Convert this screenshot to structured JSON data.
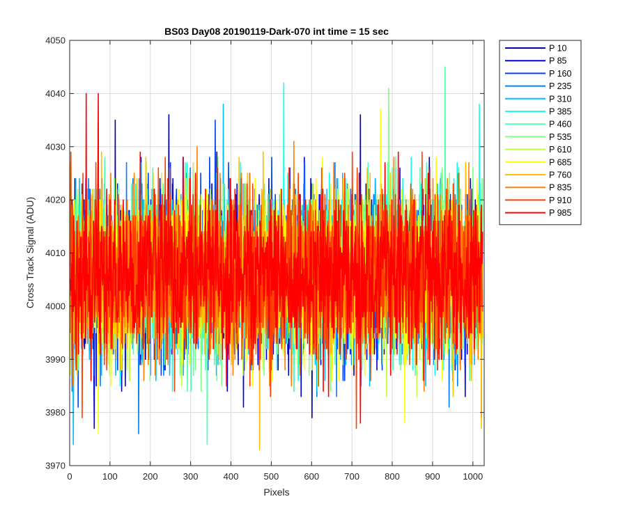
{
  "chart_data": {
    "type": "line",
    "title": "BS03 Day08 20190119-Dark-070 int time = 15 sec",
    "xlabel": "Pixels",
    "ylabel": "Cross Track Signal (ADU)",
    "xlim": [
      0,
      1028
    ],
    "ylim": [
      3970,
      4050
    ],
    "x_ticks": [
      0,
      100,
      200,
      300,
      400,
      500,
      600,
      700,
      800,
      900,
      1000
    ],
    "y_ticks": [
      3970,
      3980,
      3990,
      4000,
      4010,
      4020,
      4030,
      4040,
      4050
    ],
    "grid": true,
    "legend_position": "outside-right",
    "n_points": 1024,
    "series": [
      {
        "name": "P 10",
        "color": "#0000a8",
        "seed": 10,
        "peaks": [
          [
            112,
            4035
          ],
          [
            245,
            4036
          ],
          [
            600,
            3979
          ],
          [
            720,
            4036
          ]
        ]
      },
      {
        "name": "P 85",
        "color": "#0000e6",
        "seed": 85,
        "peaks": [
          [
            60,
            3977
          ],
          [
            430,
            3981
          ],
          [
            1020,
            3979
          ]
        ]
      },
      {
        "name": "P 160",
        "color": "#0041ff",
        "seed": 160,
        "peaks": [
          [
            20,
            3981
          ],
          [
            360,
            4035
          ]
        ]
      },
      {
        "name": "P 235",
        "color": "#0080ff",
        "seed": 235,
        "peaks": [
          [
            170,
            3976
          ],
          [
            940,
            3981
          ]
        ]
      },
      {
        "name": "P 310",
        "color": "#00bfff",
        "seed": 310,
        "peaks": [
          [
            380,
            4038
          ],
          [
            8,
            3974
          ]
        ]
      },
      {
        "name": "P 385",
        "color": "#10ffef",
        "seed": 385,
        "peaks": [
          [
            530,
            4042
          ],
          [
            1015,
            4038
          ]
        ]
      },
      {
        "name": "P 460",
        "color": "#50ffaf",
        "seed": 460,
        "peaks": [
          [
            930,
            4045
          ],
          [
            340,
            3974
          ]
        ]
      },
      {
        "name": "P 535",
        "color": "#80ff80",
        "seed": 535,
        "peaks": [
          [
            790,
            4041
          ]
        ]
      },
      {
        "name": "P 610",
        "color": "#c0ff40",
        "seed": 610,
        "peaks": [
          [
            860,
            3983
          ]
        ]
      },
      {
        "name": "P 685",
        "color": "#ffff00",
        "seed": 685,
        "peaks": [
          [
            770,
            4037
          ],
          [
            70,
            3976
          ],
          [
            830,
            3978
          ]
        ]
      },
      {
        "name": "P 760",
        "color": "#ffc000",
        "seed": 760,
        "peaks": [
          [
            470,
            3973
          ],
          [
            1020,
            3977
          ]
        ]
      },
      {
        "name": "P 835",
        "color": "#ff8000",
        "seed": 835,
        "peaks": [
          [
            315,
            4030
          ],
          [
            555,
            4031
          ]
        ]
      },
      {
        "name": "P 910",
        "color": "#ff4000",
        "seed": 910,
        "peaks": [
          [
            710,
            3977
          ],
          [
            30,
            3979
          ]
        ]
      },
      {
        "name": "P 985",
        "color": "#ff0000",
        "seed": 985,
        "peaks": [
          [
            40,
            4040
          ],
          [
            70,
            4040
          ],
          [
            720,
            3978
          ]
        ]
      }
    ]
  }
}
